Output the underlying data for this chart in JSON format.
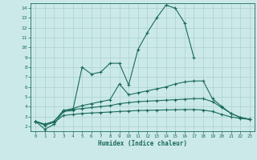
{
  "xlabel": "Humidex (Indice chaleur)",
  "background_color": "#cce9e9",
  "grid_color": "#aad0d0",
  "line_color": "#1a6b5a",
  "x": [
    0,
    1,
    2,
    3,
    4,
    5,
    6,
    7,
    8,
    9,
    10,
    11,
    12,
    13,
    14,
    15,
    16,
    17,
    18,
    19,
    20,
    21,
    22,
    23
  ],
  "line1": [
    2.5,
    1.7,
    2.2,
    3.5,
    3.6,
    8.0,
    7.3,
    7.5,
    8.4,
    8.4,
    6.2,
    9.8,
    11.5,
    13.0,
    14.3,
    14.0,
    12.5,
    9.0,
    null,
    null,
    null,
    null,
    null,
    null
  ],
  "line2": [
    2.5,
    2.2,
    2.5,
    3.6,
    3.8,
    4.1,
    4.3,
    4.5,
    4.7,
    6.3,
    5.2,
    5.4,
    5.6,
    5.8,
    6.0,
    6.3,
    6.5,
    6.6,
    6.6,
    4.8,
    4.0,
    3.3,
    2.9,
    2.7
  ],
  "line3": [
    2.5,
    2.2,
    2.5,
    3.6,
    3.7,
    3.8,
    3.9,
    4.0,
    4.1,
    4.3,
    4.4,
    4.5,
    4.55,
    4.6,
    4.65,
    4.7,
    4.75,
    4.8,
    4.8,
    4.5,
    3.9,
    3.3,
    2.9,
    2.7
  ],
  "line4": [
    2.5,
    2.1,
    2.4,
    3.1,
    3.2,
    3.3,
    3.35,
    3.4,
    3.45,
    3.5,
    3.55,
    3.6,
    3.62,
    3.64,
    3.66,
    3.68,
    3.7,
    3.7,
    3.65,
    3.5,
    3.2,
    2.95,
    2.8,
    2.7
  ],
  "ylim": [
    1.5,
    14.5
  ],
  "xlim": [
    -0.5,
    23.5
  ],
  "yticks": [
    2,
    3,
    4,
    5,
    6,
    7,
    8,
    9,
    10,
    11,
    12,
    13,
    14
  ],
  "xticks": [
    0,
    1,
    2,
    3,
    4,
    5,
    6,
    7,
    8,
    9,
    10,
    11,
    12,
    13,
    14,
    15,
    16,
    17,
    18,
    19,
    20,
    21,
    22,
    23
  ]
}
